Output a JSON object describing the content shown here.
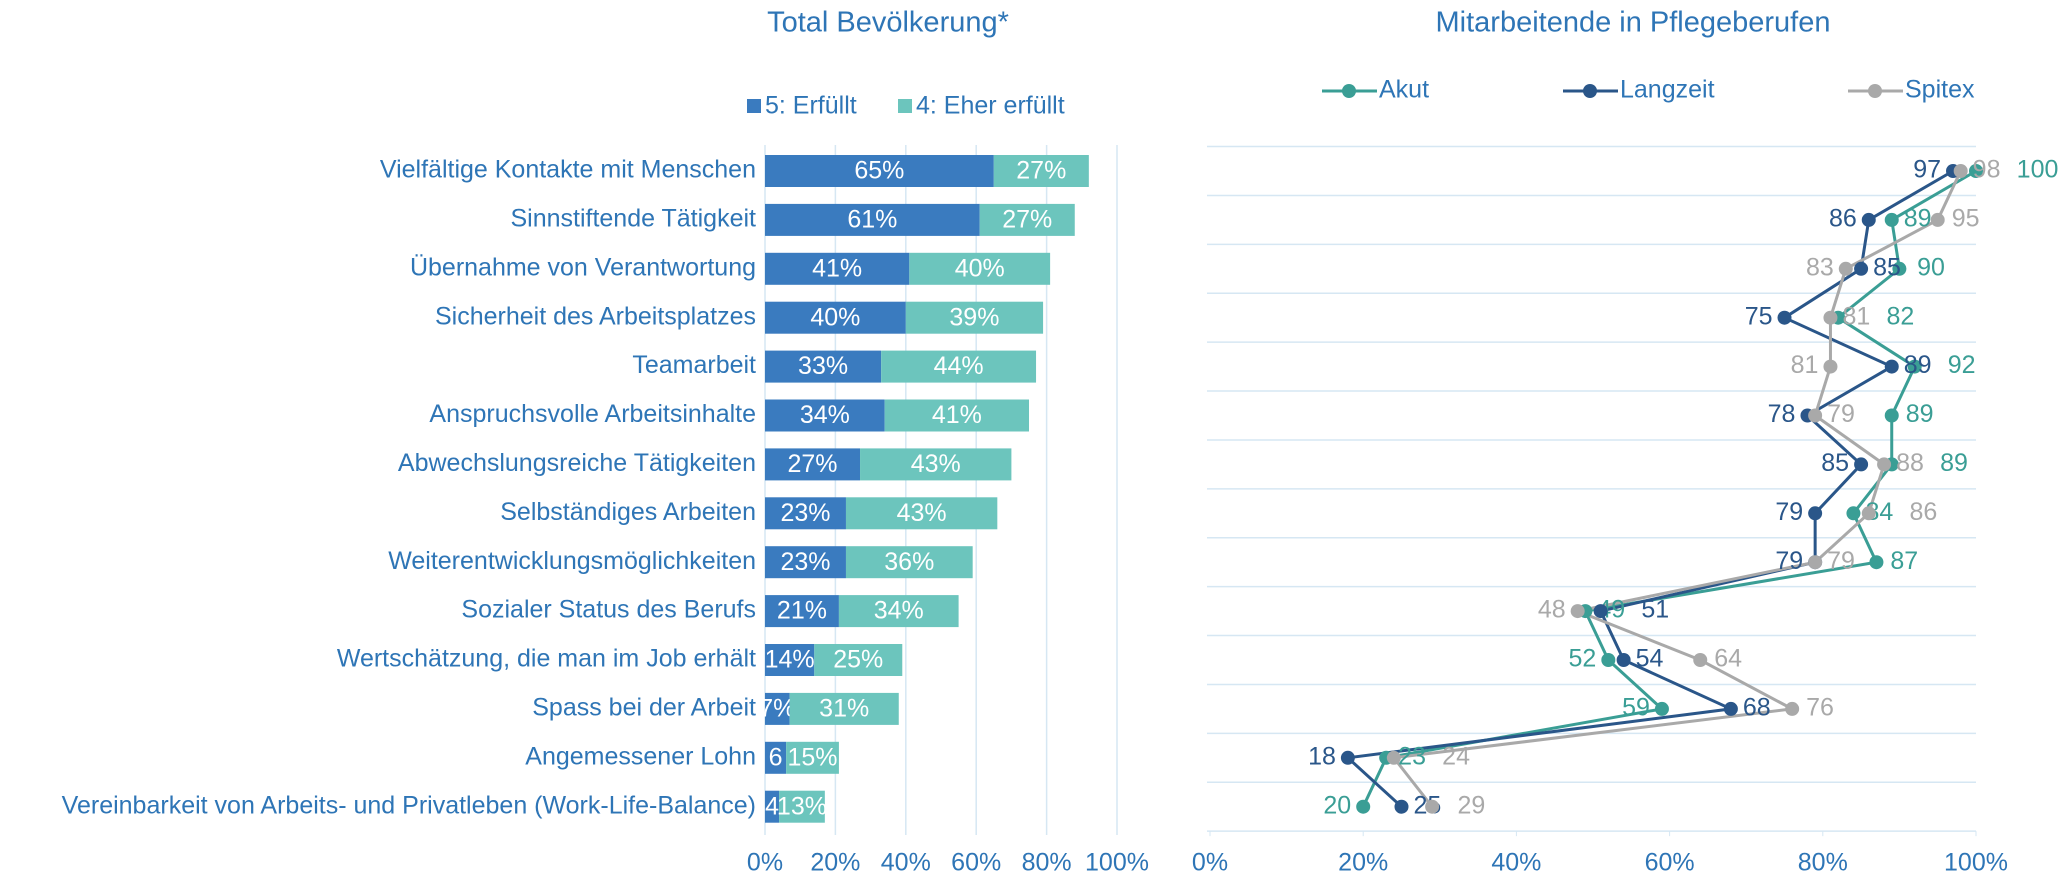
{
  "chart_data": [
    {
      "type": "bar",
      "orientation": "horizontal",
      "stacked": true,
      "title": "Total Bevölkerung*",
      "categories": [
        "Vielfältige Kontakte mit Menschen",
        "Sinnstiftende Tätigkeit",
        "Übernahme von Verantwortung",
        "Sicherheit des Arbeitsplatzes",
        "Teamarbeit",
        "Anspruchsvolle Arbeitsinhalte",
        "Abwechslungsreiche Tätigkeiten",
        "Selbständiges Arbeiten",
        "Weiterentwicklungsmöglichkeiten",
        "Sozialer Status des Berufs",
        "Wertschätzung, die man im Job erhält",
        "Spass bei der Arbeit",
        "Angemessener Lohn",
        "Vereinbarkeit von Arbeits- und Privatleben (Work-Life-Balance)"
      ],
      "series": [
        {
          "name": "5: Erfüllt",
          "color": "#3a7bbf",
          "values": [
            65,
            61,
            41,
            40,
            33,
            34,
            27,
            23,
            23,
            21,
            14,
            7,
            6,
            4
          ],
          "value_labels": [
            "65%",
            "61%",
            "41%",
            "40%",
            "33%",
            "34%",
            "27%",
            "23%",
            "23%",
            "21%",
            "14%",
            "7%",
            "6",
            "4"
          ]
        },
        {
          "name": "4: Eher erfüllt",
          "color": "#6cc5bd",
          "values": [
            27,
            27,
            40,
            39,
            44,
            41,
            43,
            43,
            36,
            34,
            25,
            31,
            15,
            13
          ],
          "value_labels": [
            "27%",
            "27%",
            "40%",
            "39%",
            "44%",
            "41%",
            "43%",
            "43%",
            "36%",
            "34%",
            "25%",
            "31%",
            "15%",
            "13%"
          ]
        }
      ],
      "xlim": [
        0,
        100
      ],
      "xticks": [
        {
          "value": 0,
          "label": "0%"
        },
        {
          "value": 20,
          "label": "20%"
        },
        {
          "value": 40,
          "label": "40%"
        },
        {
          "value": 60,
          "label": "60%"
        },
        {
          "value": 80,
          "label": "80%"
        },
        {
          "value": 100,
          "label": "100%"
        }
      ],
      "grid": true,
      "legend": "top"
    },
    {
      "type": "line",
      "orientation": "horizontal",
      "title": "Mitarbeitende in Pflegeberufen",
      "series": [
        {
          "name": "Akut",
          "color": "#3a9e95",
          "values": [
            100,
            89,
            90,
            82,
            92,
            89,
            89,
            84,
            87,
            49,
            52,
            59,
            23,
            20
          ]
        },
        {
          "name": "Langzeit",
          "color": "#2a5689",
          "values": [
            97,
            86,
            85,
            75,
            89,
            78,
            85,
            79,
            79,
            51,
            54,
            68,
            18,
            25
          ]
        },
        {
          "name": "Spitex",
          "color": "#a9a9a9",
          "values": [
            98,
            95,
            83,
            81,
            81,
            79,
            88,
            86,
            79,
            48,
            64,
            76,
            24,
            29
          ]
        }
      ],
      "xlim": [
        0,
        100
      ],
      "xticks": [
        {
          "value": 0,
          "label": "0%"
        },
        {
          "value": 20,
          "label": "20%"
        },
        {
          "value": 40,
          "label": "40%"
        },
        {
          "value": 60,
          "label": "60%"
        },
        {
          "value": 80,
          "label": "80%"
        },
        {
          "value": 100,
          "label": "100%"
        }
      ],
      "legend": "top"
    }
  ]
}
